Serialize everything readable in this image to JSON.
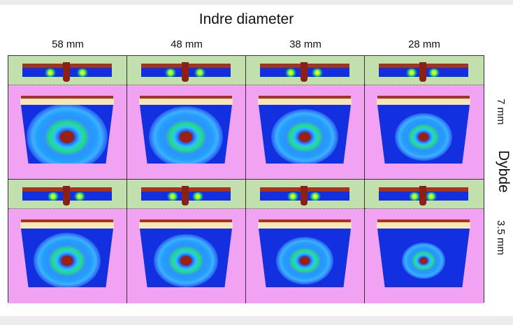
{
  "title": "Indre diameter",
  "columns": [
    "58 mm",
    "48 mm",
    "38 mm",
    "28 mm"
  ],
  "row_axis_label": "Dybde",
  "rows": [
    "7 mm",
    "3.5 mm"
  ],
  "colors": {
    "green_strip": "#c2dfae",
    "pink_panel": "#f2a2f2",
    "field_blue": "#1230e0",
    "conductor_red": "#a8331c",
    "dielectric_cream": "#f7e6b8"
  }
}
